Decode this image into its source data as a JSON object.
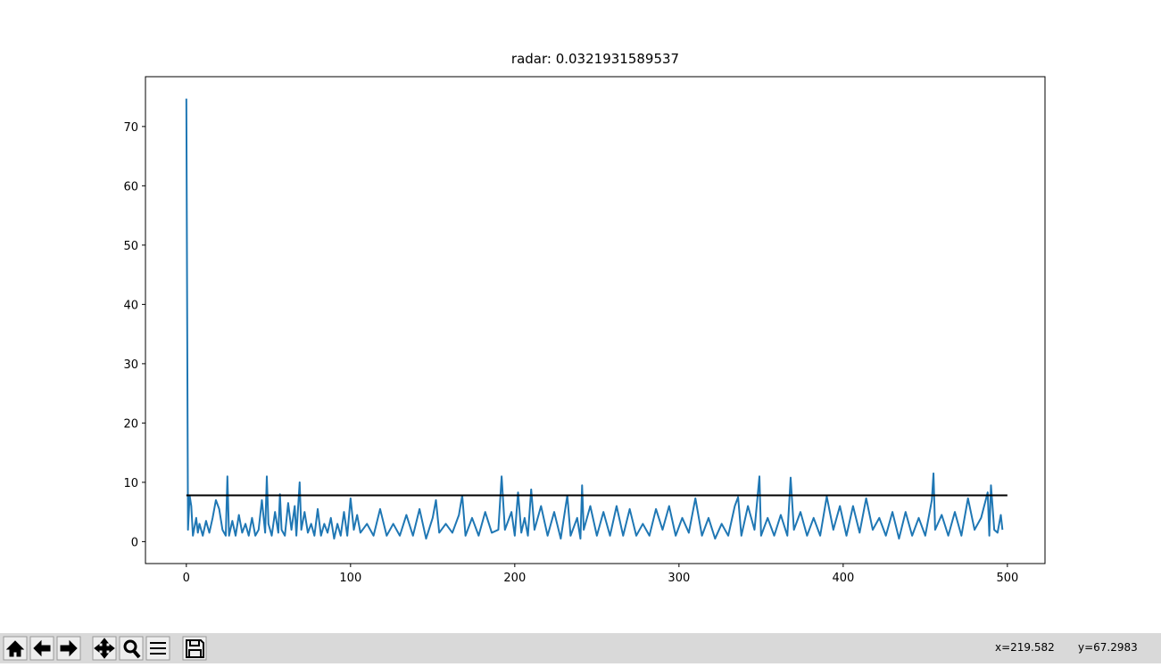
{
  "chart_data": {
    "type": "line",
    "title": "radar: 0.0321931589537",
    "xlim": [
      -24.9,
      522.9
    ],
    "ylim": [
      -3.7,
      78.4
    ],
    "xticks": [
      0,
      100,
      200,
      300,
      400,
      500
    ],
    "yticks": [
      0,
      10,
      20,
      30,
      40,
      50,
      60,
      70
    ],
    "series": [
      {
        "color": "#1f77b4",
        "x": [
          0,
          1,
          2,
          3,
          4,
          5,
          6,
          7,
          8,
          9,
          10,
          12,
          14,
          16,
          18,
          20,
          22,
          24,
          25,
          26,
          28,
          30,
          32,
          34,
          36,
          38,
          40,
          42,
          44,
          46,
          48,
          49,
          50,
          52,
          54,
          56,
          57,
          58,
          60,
          62,
          64,
          66,
          67,
          69,
          70,
          72,
          74,
          76,
          78,
          80,
          82,
          84,
          86,
          88,
          90,
          92,
          94,
          96,
          98,
          100,
          102,
          104,
          106,
          110,
          114,
          118,
          122,
          126,
          130,
          134,
          138,
          142,
          146,
          150,
          152,
          154,
          158,
          162,
          166,
          168,
          170,
          174,
          178,
          182,
          186,
          190,
          192,
          194,
          198,
          200,
          202,
          204,
          206,
          208,
          210,
          212,
          216,
          220,
          224,
          228,
          232,
          234,
          238,
          240,
          241,
          242,
          246,
          250,
          254,
          258,
          262,
          266,
          270,
          274,
          278,
          282,
          286,
          290,
          294,
          298,
          302,
          306,
          310,
          314,
          318,
          322,
          326,
          330,
          334,
          336,
          338,
          342,
          346,
          349,
          350,
          354,
          358,
          362,
          366,
          368,
          370,
          374,
          378,
          382,
          386,
          390,
          394,
          398,
          402,
          406,
          410,
          414,
          418,
          422,
          426,
          430,
          434,
          438,
          442,
          446,
          450,
          454,
          455,
          456,
          460,
          464,
          468,
          472,
          476,
          480,
          484,
          488,
          489,
          490,
          492,
          494,
          496,
          497
        ],
        "values": [
          74.7,
          2,
          7.8,
          6,
          1,
          2.5,
          4,
          1.5,
          3,
          2,
          1,
          3.5,
          1.5,
          4,
          7,
          5.5,
          2,
          1,
          11,
          1,
          3.5,
          1,
          4.5,
          1.5,
          3,
          1,
          4,
          1,
          2,
          7,
          1.5,
          11,
          3,
          1,
          5,
          1.5,
          8,
          2,
          1,
          6.5,
          2,
          6,
          1,
          10,
          2,
          5,
          1.5,
          3,
          1,
          5.5,
          1,
          3,
          1.5,
          4,
          0.5,
          3,
          1,
          5,
          1,
          7.3,
          2,
          4.5,
          1.5,
          3,
          1,
          5.5,
          1,
          3,
          1,
          4.5,
          1,
          5.5,
          0.5,
          4,
          7,
          1.5,
          3,
          1.5,
          4.5,
          7.8,
          1,
          4,
          1,
          5,
          1.5,
          2,
          11,
          2,
          5,
          1,
          8.3,
          1.5,
          4,
          1,
          8.8,
          2,
          6,
          1,
          5,
          0.5,
          7.8,
          1,
          4,
          0.5,
          9.5,
          2,
          6,
          1,
          5,
          1,
          6,
          1,
          5.5,
          1,
          3,
          1,
          5.5,
          2,
          6,
          1,
          4,
          1.5,
          7.3,
          1,
          4,
          0.5,
          3,
          1,
          6,
          7.5,
          1,
          6,
          2,
          11,
          1,
          4,
          1,
          4.5,
          1,
          10.8,
          2,
          5,
          1,
          4,
          1,
          7.6,
          2,
          6,
          1,
          6,
          1.5,
          7.3,
          2,
          4,
          1,
          5,
          0.5,
          5,
          1,
          4,
          1,
          7,
          11.5,
          2,
          4.5,
          1,
          5,
          1,
          7.3,
          2,
          4,
          8.3,
          1,
          9.5,
          2,
          1.5,
          4.5,
          2
        ]
      },
      {
        "color": "#000000",
        "x": [
          0,
          500
        ],
        "values": [
          7.8,
          7.8
        ]
      }
    ]
  },
  "status": {
    "x": "x=219.582",
    "y": "y=67.2983"
  }
}
